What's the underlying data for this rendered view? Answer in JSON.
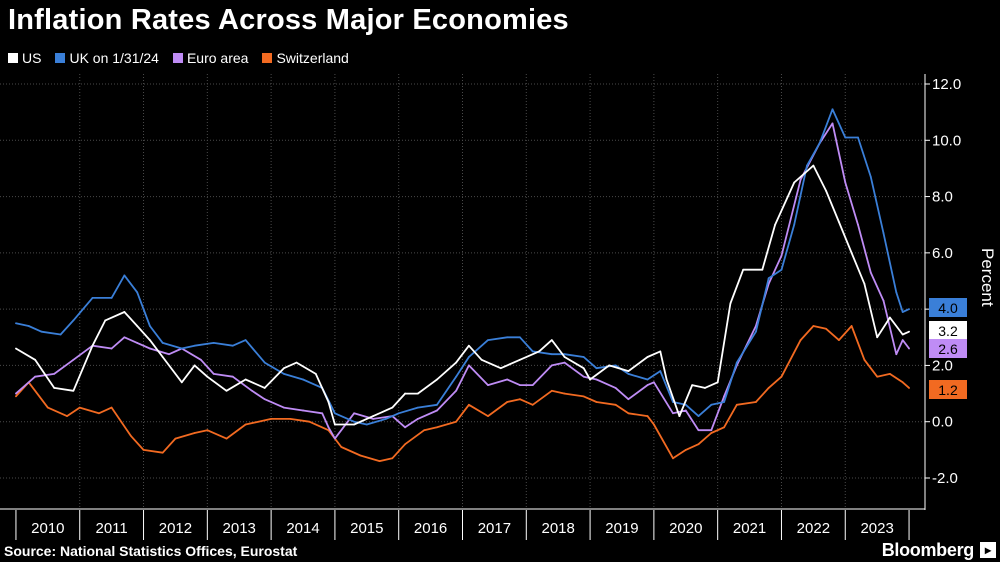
{
  "header": {
    "title": "Inflation Rates Across Major Economies"
  },
  "footer": {
    "source": "Source: National Statistics Offices, Eurostat",
    "brand": "Bloomberg"
  },
  "colors": {
    "background": "#000000",
    "US": "#ffffff",
    "UK": "#3a7fd8",
    "Euro area": "#bf8cf5",
    "Switzerland": "#f26a21",
    "grid": "#555555"
  },
  "chart_data": {
    "type": "line",
    "title": "Inflation Rates Across Major Economies",
    "ylabel": "Percent",
    "xlabel": "",
    "ylim": [
      -2.0,
      12.0
    ],
    "yticks": [
      "12.0",
      "10.0",
      "8.0",
      "6.0",
      "4.0",
      "2.0",
      "0.0",
      "-2.0"
    ],
    "xtick_labels": [
      "2010",
      "2011",
      "2012",
      "2013",
      "2014",
      "2015",
      "2016",
      "2017",
      "2018",
      "2019",
      "2020",
      "2021",
      "2022",
      "2023"
    ],
    "grid": true,
    "legend_position": "top-left",
    "end_labels": [
      {
        "series": "UK on 1/31/24",
        "text": "4.0"
      },
      {
        "series": "US",
        "text": "3.2"
      },
      {
        "series": "Euro area",
        "text": "2.6"
      },
      {
        "series": "Switzerland",
        "text": "1.2"
      }
    ],
    "series": [
      {
        "name": "US",
        "color": "#ffffff",
        "points": [
          [
            2010.0,
            2.6
          ],
          [
            2010.3,
            2.2
          ],
          [
            2010.6,
            1.2
          ],
          [
            2010.9,
            1.1
          ],
          [
            2011.2,
            2.7
          ],
          [
            2011.4,
            3.6
          ],
          [
            2011.7,
            3.9
          ],
          [
            2011.9,
            3.4
          ],
          [
            2012.1,
            2.9
          ],
          [
            2012.3,
            2.3
          ],
          [
            2012.6,
            1.4
          ],
          [
            2012.8,
            2.0
          ],
          [
            2013.0,
            1.6
          ],
          [
            2013.3,
            1.1
          ],
          [
            2013.6,
            1.5
          ],
          [
            2013.9,
            1.2
          ],
          [
            2014.2,
            1.9
          ],
          [
            2014.4,
            2.1
          ],
          [
            2014.7,
            1.7
          ],
          [
            2014.9,
            0.7
          ],
          [
            2015.0,
            -0.1
          ],
          [
            2015.3,
            -0.1
          ],
          [
            2015.6,
            0.2
          ],
          [
            2015.9,
            0.5
          ],
          [
            2016.1,
            1.0
          ],
          [
            2016.3,
            1.0
          ],
          [
            2016.6,
            1.5
          ],
          [
            2016.9,
            2.1
          ],
          [
            2017.1,
            2.7
          ],
          [
            2017.3,
            2.2
          ],
          [
            2017.6,
            1.9
          ],
          [
            2017.9,
            2.2
          ],
          [
            2018.2,
            2.5
          ],
          [
            2018.4,
            2.9
          ],
          [
            2018.6,
            2.3
          ],
          [
            2018.9,
            1.9
          ],
          [
            2019.0,
            1.5
          ],
          [
            2019.3,
            2.0
          ],
          [
            2019.6,
            1.8
          ],
          [
            2019.9,
            2.3
          ],
          [
            2020.1,
            2.5
          ],
          [
            2020.2,
            1.5
          ],
          [
            2020.4,
            0.2
          ],
          [
            2020.6,
            1.3
          ],
          [
            2020.8,
            1.2
          ],
          [
            2021.0,
            1.4
          ],
          [
            2021.2,
            4.2
          ],
          [
            2021.4,
            5.4
          ],
          [
            2021.7,
            5.4
          ],
          [
            2021.9,
            7.0
          ],
          [
            2022.2,
            8.5
          ],
          [
            2022.5,
            9.1
          ],
          [
            2022.7,
            8.2
          ],
          [
            2022.9,
            7.1
          ],
          [
            2023.1,
            6.0
          ],
          [
            2023.3,
            4.9
          ],
          [
            2023.5,
            3.0
          ],
          [
            2023.7,
            3.7
          ],
          [
            2023.9,
            3.1
          ],
          [
            2024.0,
            3.2
          ]
        ]
      },
      {
        "name": "UK on 1/31/24",
        "color": "#3a7fd8",
        "points": [
          [
            2010.0,
            3.5
          ],
          [
            2010.2,
            3.4
          ],
          [
            2010.4,
            3.2
          ],
          [
            2010.7,
            3.1
          ],
          [
            2010.9,
            3.6
          ],
          [
            2011.2,
            4.4
          ],
          [
            2011.5,
            4.4
          ],
          [
            2011.7,
            5.2
          ],
          [
            2011.9,
            4.6
          ],
          [
            2012.1,
            3.4
          ],
          [
            2012.3,
            2.8
          ],
          [
            2012.6,
            2.6
          ],
          [
            2012.8,
            2.7
          ],
          [
            2013.1,
            2.8
          ],
          [
            2013.4,
            2.7
          ],
          [
            2013.6,
            2.9
          ],
          [
            2013.9,
            2.1
          ],
          [
            2014.2,
            1.7
          ],
          [
            2014.5,
            1.5
          ],
          [
            2014.8,
            1.2
          ],
          [
            2015.0,
            0.3
          ],
          [
            2015.3,
            0.0
          ],
          [
            2015.5,
            -0.1
          ],
          [
            2015.8,
            0.1
          ],
          [
            2016.0,
            0.3
          ],
          [
            2016.3,
            0.5
          ],
          [
            2016.6,
            0.6
          ],
          [
            2016.9,
            1.6
          ],
          [
            2017.1,
            2.3
          ],
          [
            2017.4,
            2.9
          ],
          [
            2017.7,
            3.0
          ],
          [
            2017.9,
            3.0
          ],
          [
            2018.1,
            2.5
          ],
          [
            2018.4,
            2.4
          ],
          [
            2018.6,
            2.4
          ],
          [
            2018.9,
            2.3
          ],
          [
            2019.1,
            1.9
          ],
          [
            2019.4,
            2.0
          ],
          [
            2019.6,
            1.7
          ],
          [
            2019.9,
            1.5
          ],
          [
            2020.1,
            1.8
          ],
          [
            2020.3,
            0.7
          ],
          [
            2020.5,
            0.6
          ],
          [
            2020.7,
            0.2
          ],
          [
            2020.9,
            0.6
          ],
          [
            2021.1,
            0.7
          ],
          [
            2021.3,
            2.1
          ],
          [
            2021.6,
            3.2
          ],
          [
            2021.8,
            5.1
          ],
          [
            2022.0,
            5.4
          ],
          [
            2022.2,
            7.0
          ],
          [
            2022.4,
            9.1
          ],
          [
            2022.6,
            9.9
          ],
          [
            2022.8,
            11.1
          ],
          [
            2023.0,
            10.1
          ],
          [
            2023.2,
            10.1
          ],
          [
            2023.4,
            8.7
          ],
          [
            2023.6,
            6.7
          ],
          [
            2023.8,
            4.6
          ],
          [
            2023.9,
            3.9
          ],
          [
            2024.0,
            4.0
          ]
        ]
      },
      {
        "name": "Euro area",
        "color": "#bf8cf5",
        "points": [
          [
            2010.0,
            1.0
          ],
          [
            2010.3,
            1.6
          ],
          [
            2010.6,
            1.7
          ],
          [
            2010.9,
            2.2
          ],
          [
            2011.2,
            2.7
          ],
          [
            2011.5,
            2.6
          ],
          [
            2011.7,
            3.0
          ],
          [
            2011.9,
            2.8
          ],
          [
            2012.1,
            2.6
          ],
          [
            2012.4,
            2.4
          ],
          [
            2012.6,
            2.6
          ],
          [
            2012.9,
            2.2
          ],
          [
            2013.1,
            1.7
          ],
          [
            2013.4,
            1.6
          ],
          [
            2013.7,
            1.1
          ],
          [
            2013.9,
            0.8
          ],
          [
            2014.2,
            0.5
          ],
          [
            2014.5,
            0.4
          ],
          [
            2014.8,
            0.3
          ],
          [
            2014.9,
            -0.2
          ],
          [
            2015.0,
            -0.6
          ],
          [
            2015.3,
            0.3
          ],
          [
            2015.6,
            0.1
          ],
          [
            2015.9,
            0.2
          ],
          [
            2016.1,
            -0.2
          ],
          [
            2016.3,
            0.1
          ],
          [
            2016.6,
            0.4
          ],
          [
            2016.9,
            1.1
          ],
          [
            2017.1,
            2.0
          ],
          [
            2017.4,
            1.3
          ],
          [
            2017.7,
            1.5
          ],
          [
            2017.9,
            1.3
          ],
          [
            2018.1,
            1.3
          ],
          [
            2018.4,
            2.0
          ],
          [
            2018.6,
            2.1
          ],
          [
            2018.9,
            1.6
          ],
          [
            2019.1,
            1.5
          ],
          [
            2019.4,
            1.2
          ],
          [
            2019.6,
            0.8
          ],
          [
            2019.9,
            1.3
          ],
          [
            2020.0,
            1.4
          ],
          [
            2020.3,
            0.3
          ],
          [
            2020.5,
            0.4
          ],
          [
            2020.7,
            -0.3
          ],
          [
            2020.9,
            -0.3
          ],
          [
            2021.1,
            0.9
          ],
          [
            2021.3,
            2.0
          ],
          [
            2021.6,
            3.4
          ],
          [
            2021.8,
            4.9
          ],
          [
            2022.0,
            5.9
          ],
          [
            2022.3,
            8.6
          ],
          [
            2022.6,
            9.9
          ],
          [
            2022.8,
            10.6
          ],
          [
            2023.0,
            8.5
          ],
          [
            2023.2,
            7.0
          ],
          [
            2023.4,
            5.3
          ],
          [
            2023.6,
            4.3
          ],
          [
            2023.8,
            2.4
          ],
          [
            2023.9,
            2.9
          ],
          [
            2024.0,
            2.6
          ]
        ]
      },
      {
        "name": "Switzerland",
        "color": "#f26a21",
        "points": [
          [
            2010.0,
            0.9
          ],
          [
            2010.2,
            1.4
          ],
          [
            2010.5,
            0.5
          ],
          [
            2010.8,
            0.2
          ],
          [
            2011.0,
            0.5
          ],
          [
            2011.3,
            0.3
          ],
          [
            2011.5,
            0.5
          ],
          [
            2011.8,
            -0.5
          ],
          [
            2012.0,
            -1.0
          ],
          [
            2012.3,
            -1.1
          ],
          [
            2012.5,
            -0.6
          ],
          [
            2012.8,
            -0.4
          ],
          [
            2013.0,
            -0.3
          ],
          [
            2013.3,
            -0.6
          ],
          [
            2013.6,
            -0.1
          ],
          [
            2013.8,
            0.0
          ],
          [
            2014.0,
            0.1
          ],
          [
            2014.3,
            0.1
          ],
          [
            2014.6,
            0.0
          ],
          [
            2014.9,
            -0.3
          ],
          [
            2015.1,
            -0.9
          ],
          [
            2015.4,
            -1.2
          ],
          [
            2015.7,
            -1.4
          ],
          [
            2015.9,
            -1.3
          ],
          [
            2016.1,
            -0.8
          ],
          [
            2016.4,
            -0.3
          ],
          [
            2016.6,
            -0.2
          ],
          [
            2016.9,
            0.0
          ],
          [
            2017.1,
            0.6
          ],
          [
            2017.4,
            0.2
          ],
          [
            2017.7,
            0.7
          ],
          [
            2017.9,
            0.8
          ],
          [
            2018.1,
            0.6
          ],
          [
            2018.4,
            1.1
          ],
          [
            2018.6,
            1.0
          ],
          [
            2018.9,
            0.9
          ],
          [
            2019.1,
            0.7
          ],
          [
            2019.4,
            0.6
          ],
          [
            2019.6,
            0.3
          ],
          [
            2019.9,
            0.2
          ],
          [
            2020.0,
            -0.1
          ],
          [
            2020.3,
            -1.3
          ],
          [
            2020.5,
            -1.0
          ],
          [
            2020.7,
            -0.8
          ],
          [
            2020.9,
            -0.4
          ],
          [
            2021.1,
            -0.2
          ],
          [
            2021.3,
            0.6
          ],
          [
            2021.6,
            0.7
          ],
          [
            2021.8,
            1.2
          ],
          [
            2022.0,
            1.6
          ],
          [
            2022.3,
            2.9
          ],
          [
            2022.5,
            3.4
          ],
          [
            2022.7,
            3.3
          ],
          [
            2022.9,
            2.9
          ],
          [
            2023.1,
            3.4
          ],
          [
            2023.3,
            2.2
          ],
          [
            2023.5,
            1.6
          ],
          [
            2023.7,
            1.7
          ],
          [
            2023.9,
            1.4
          ],
          [
            2024.0,
            1.2
          ]
        ]
      }
    ]
  }
}
